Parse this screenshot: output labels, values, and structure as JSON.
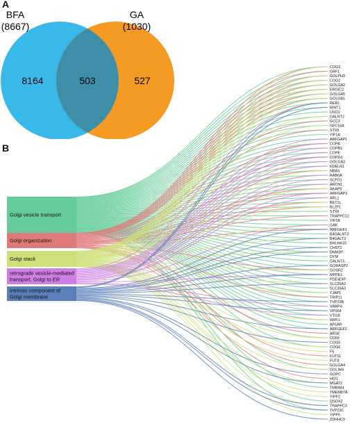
{
  "panel_a": {
    "label": "A",
    "venn": {
      "left": {
        "name": "BFA",
        "total": "(8667)",
        "only": "8164",
        "color": "#39b8ea"
      },
      "right": {
        "name": "GA",
        "total": "(1030)",
        "only": "527",
        "color": "#f59a22"
      },
      "overlap": {
        "count": "503",
        "color": "#3c8fa6"
      }
    }
  },
  "panel_b": {
    "label": "B",
    "categories": [
      {
        "text": "Golgi vesicle transport",
        "color": "#66cc99"
      },
      {
        "text": "Golgi organization",
        "color": "#e07a7a"
      },
      {
        "text": "Golgi stack",
        "color": "#cfe07a"
      },
      {
        "text": "retrograde vesicle-mediated transport, Golgi to ER",
        "color": "#cf7fe6"
      },
      {
        "text": "intrinsic component of Golgi membrane",
        "color": "#5b7fb8"
      }
    ],
    "genes": [
      "COG3",
      "GBF1",
      "GOLPH3",
      "COG2",
      "GOLGA2",
      "ERGIC2",
      "GOLGA5",
      "GOLGB1",
      "RER1",
      "RINT1",
      "USO1",
      "GALNT2",
      "GCC2",
      "SEC16A",
      "STX5",
      "YIF1A",
      "ARFGAP1",
      "COPA",
      "COPB1",
      "COPE",
      "COPG1",
      "GOLGA3",
      "KDELR1",
      "NBAS",
      "RAB6A",
      "SCFD1",
      "ARCN1",
      "AKAP9",
      "ARFGAP3",
      "ARL1",
      "BET1L",
      "BLZF1",
      "STX6",
      "TRAPPC12",
      "YIF1B",
      "GAK",
      "ARFGEF1",
      "B4GALNT3",
      "B4GALT3",
      "BHLHA15",
      "CHST2",
      "DNM3P",
      "DYM",
      "GALNT3",
      "GORASP2",
      "GOSR2",
      "MPPE1",
      "PDE4DIP",
      "SLC35A2",
      "SLC35A3",
      "TJAP1",
      "TRIP11",
      "TVP23B",
      "VAMP4",
      "VPS54",
      "VTI1B",
      "WIPI1",
      "AP1AR",
      "ARFGEF2",
      "ARSE",
      "CD59",
      "COG5",
      "COG6",
      "F5",
      "FUT11",
      "FUT8",
      "GOLGA4",
      "GOLIM4",
      "GOPC",
      "HID1",
      "MGAT2",
      "TMBIM4",
      "TMEM87A",
      "YIPF2",
      "QSOX2",
      "TRAPPC3",
      "TVP23C",
      "YIPF5",
      "ZDHHC9"
    ]
  }
}
